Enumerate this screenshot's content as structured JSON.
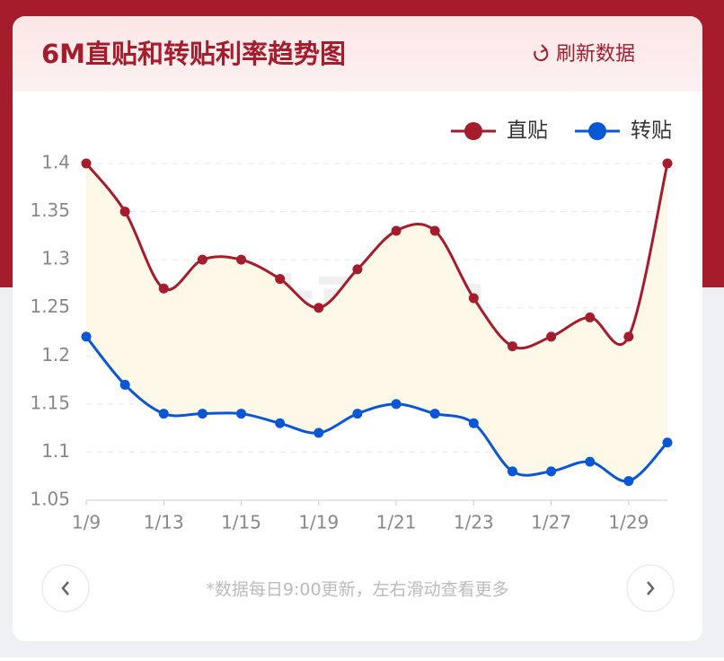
{
  "header": {
    "title": "6M直贴和转贴利率趋势图",
    "refresh": "刷新数据"
  },
  "watermark": "贴票宝",
  "footer": {
    "note": "*数据每日9:00更新，左右滑动查看更多"
  },
  "chart_data": {
    "type": "line",
    "categories": [
      "1/9",
      null,
      "1/13",
      null,
      "1/15",
      null,
      "1/19",
      null,
      "1/21",
      null,
      "1/23",
      null,
      "1/27",
      null,
      "1/29",
      null
    ],
    "series": [
      {
        "name": "直贴",
        "color": "#a51c2c",
        "values": [
          1.4,
          1.35,
          1.27,
          1.3,
          1.3,
          1.28,
          1.25,
          1.29,
          1.33,
          1.33,
          1.26,
          1.21,
          1.22,
          1.24,
          1.22,
          1.4
        ]
      },
      {
        "name": "转贴",
        "color": "#0a57d6",
        "values": [
          1.22,
          1.17,
          1.14,
          1.14,
          1.14,
          1.13,
          1.12,
          1.14,
          1.15,
          1.14,
          1.13,
          1.08,
          1.08,
          1.09,
          1.07,
          1.11
        ]
      }
    ],
    "ylim": [
      1.05,
      1.4
    ],
    "yticks": [
      1.05,
      1.1,
      1.15,
      1.2,
      1.25,
      1.3,
      1.35,
      1.4
    ],
    "grid": true,
    "band_color": "#fdf8e8",
    "legend": "top-right",
    "smooth": true
  }
}
